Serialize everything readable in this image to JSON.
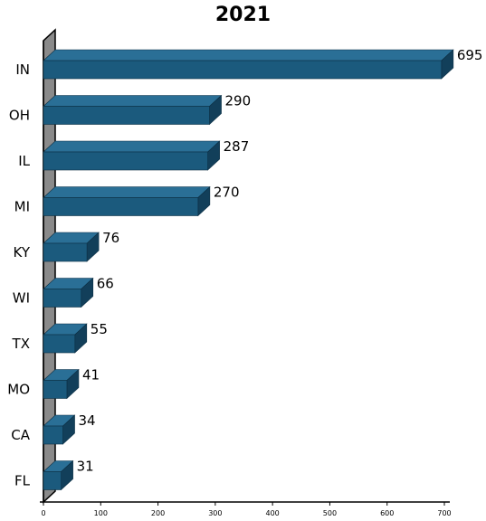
{
  "chart_data": {
    "type": "bar",
    "orientation": "horizontal",
    "title": "2021",
    "categories": [
      "IN",
      "OH",
      "IL",
      "MI",
      "KY",
      "WI",
      "TX",
      "MO",
      "CA",
      "FL"
    ],
    "values": [
      695,
      290,
      287,
      270,
      76,
      66,
      55,
      41,
      34,
      31
    ],
    "xlim": [
      0,
      700
    ],
    "xticks": [
      0,
      100,
      200,
      300,
      400,
      500,
      600,
      700
    ],
    "xlabel": "",
    "ylabel": "",
    "grid": false,
    "bar_style": "3d",
    "colors": {
      "bar_front": "#1b5a7d",
      "bar_top": "#2a6f96",
      "bar_side": "#123f5a",
      "wall": "#8a8a8a",
      "wall_top": "#b0b0b0",
      "axis": "#000000"
    }
  }
}
